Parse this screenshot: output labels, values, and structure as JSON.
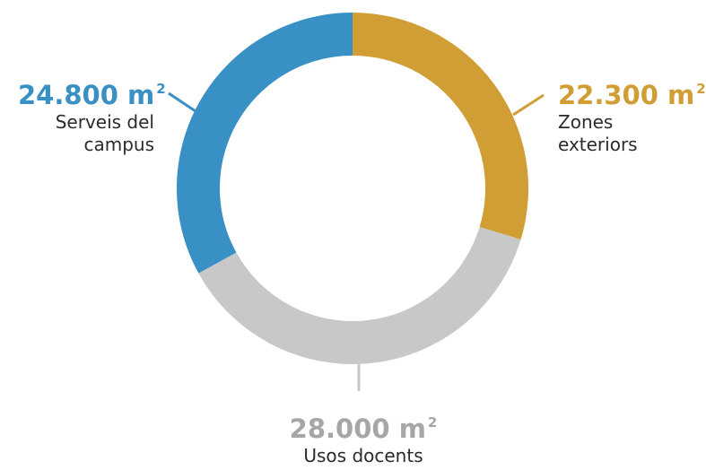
{
  "chart_data": {
    "type": "pie",
    "style": "donut",
    "title": "",
    "slices": [
      {
        "value": 22300,
        "value_text": "22.300",
        "unit": "m",
        "unit_sup": "2",
        "label_lines": [
          "Zones",
          "exteriors"
        ],
        "color": "#d09e34"
      },
      {
        "value": 28000,
        "value_text": "28.000",
        "unit": "m",
        "unit_sup": "2",
        "label_lines": [
          "Usos docents"
        ],
        "color": "#c8c8c8"
      },
      {
        "value": 24800,
        "value_text": "24.800",
        "unit": "m",
        "unit_sup": "2",
        "label_lines": [
          "Serveis del",
          "campus"
        ],
        "color": "#3990c4"
      }
    ],
    "label_text_color": "#2b2b2b",
    "value_colors": [
      "#d09e34",
      "#a6a6a6",
      "#3990c4"
    ]
  }
}
